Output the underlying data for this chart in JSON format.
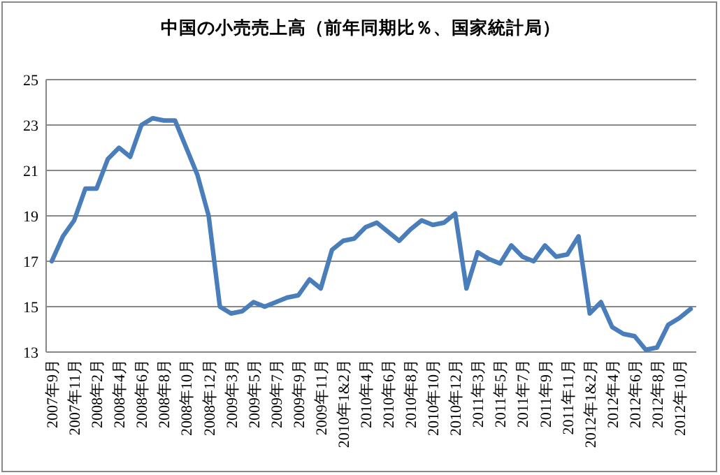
{
  "chart_data": {
    "type": "line",
    "title": "中国の小売売上高（前年同期比％、国家統計局）",
    "categories": [
      "2007年9月",
      null,
      "2007年11月",
      null,
      "2008年2月",
      null,
      "2008年4月",
      null,
      "2008年6月",
      null,
      "2008年8月",
      null,
      "2008年10月",
      null,
      "2008年12月",
      null,
      "2009年3月",
      null,
      "2009年5月",
      null,
      "2009年7月",
      null,
      "2009年9月",
      null,
      "2009年11月",
      null,
      "2010年1&2月",
      null,
      "2010年4月",
      null,
      "2010年6月",
      null,
      "2010年8月",
      null,
      "2010年10月",
      null,
      "2010年12月",
      null,
      "2011年3月",
      null,
      "2011年5月",
      null,
      "2011年7月",
      null,
      "2011年9月",
      null,
      "2011年11月",
      null,
      "2012年1&2月",
      null,
      "2012年4月",
      null,
      "2012年6月",
      null,
      "2012年8月",
      null,
      "2012年10月",
      null
    ],
    "series": [
      {
        "color": "#4a7ebb",
        "values": [
          17.0,
          18.1,
          18.8,
          20.2,
          20.2,
          21.5,
          22.0,
          21.6,
          23.0,
          23.3,
          23.2,
          23.2,
          22.0,
          20.8,
          19.0,
          15.0,
          14.7,
          14.8,
          15.2,
          15.0,
          15.2,
          15.4,
          15.5,
          16.2,
          15.8,
          17.5,
          17.9,
          18.0,
          18.5,
          18.7,
          18.3,
          17.9,
          18.4,
          18.8,
          18.6,
          18.7,
          19.1,
          15.8,
          17.4,
          17.1,
          16.9,
          17.7,
          17.2,
          17.0,
          17.7,
          17.2,
          17.3,
          18.1,
          14.7,
          15.2,
          14.1,
          13.8,
          13.7,
          13.1,
          13.2,
          14.2,
          14.5,
          14.9
        ]
      }
    ],
    "ylim": [
      13,
      25
    ],
    "yticks": [
      13,
      15,
      17,
      19,
      21,
      23,
      25
    ],
    "grid": "y"
  }
}
